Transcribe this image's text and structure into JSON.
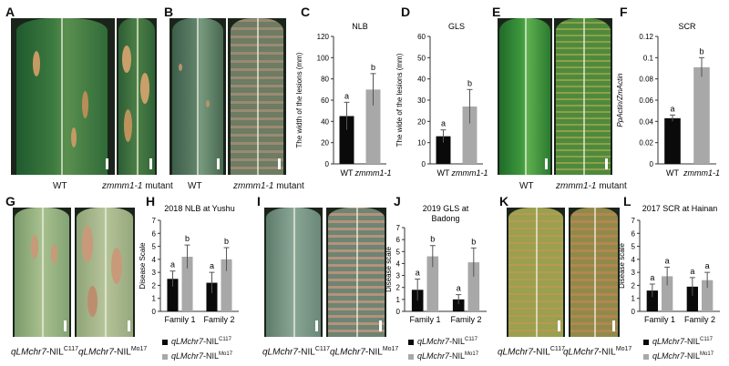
{
  "panels": {
    "A": "A",
    "B": "B",
    "C": "C",
    "D": "D",
    "E": "E",
    "F": "F",
    "G": "G",
    "H": "H",
    "I": "I",
    "J": "J",
    "K": "K",
    "L": "L"
  },
  "captions": {
    "wt": "WT",
    "mutant_gene": "zmmm1-1",
    "mutant_word": " mutant",
    "nil_gene": "qLMchr7",
    "nil_c117_base": "-NIL",
    "c117_sup": "C117",
    "mo17_sup": "Mo17"
  },
  "chart_data": [
    {
      "panel": "C",
      "type": "bar",
      "title": "NLB",
      "ylabel": "The width of the lesions (mm)",
      "categories": [
        "WT",
        "zmmm1-1"
      ],
      "values": [
        45,
        70
      ],
      "errors": [
        13,
        15
      ],
      "letters": [
        "a",
        "b"
      ],
      "ylim": [
        0,
        120
      ],
      "yticks": [
        0,
        20,
        40,
        60,
        80,
        100,
        120
      ],
      "colors": [
        "#0a0a0a",
        "#a8a8a8"
      ]
    },
    {
      "panel": "D",
      "type": "bar",
      "title": "GLS",
      "ylabel": "The wide of the lesions (mm)",
      "categories": [
        "WT",
        "zmmm1-1"
      ],
      "values": [
        13,
        27
      ],
      "errors": [
        3,
        8
      ],
      "letters": [
        "a",
        "b"
      ],
      "ylim": [
        0,
        60
      ],
      "yticks": [
        0,
        10,
        20,
        30,
        40,
        50,
        60
      ],
      "colors": [
        "#0a0a0a",
        "#a8a8a8"
      ]
    },
    {
      "panel": "F",
      "type": "bar",
      "title": "SCR",
      "ylabel": "PpActin/ZmActin",
      "categories": [
        "WT",
        "zmmm1-1"
      ],
      "values": [
        0.043,
        0.091
      ],
      "errors": [
        0.003,
        0.009
      ],
      "letters": [
        "a",
        "b"
      ],
      "ylim": [
        0,
        0.12
      ],
      "yticks": [
        "0",
        "0.02",
        "0.04",
        "0.06",
        "0.08",
        "0.1",
        "0.12"
      ],
      "colors": [
        "#0a0a0a",
        "#a8a8a8"
      ]
    },
    {
      "panel": "H",
      "type": "bar",
      "title": "2018 NLB at Yushu",
      "ylabel": "Disease Scale",
      "categories": [
        "Family 1",
        "Family 2"
      ],
      "series": [
        {
          "values": [
            2.5,
            2.2
          ],
          "errors": [
            0.6,
            0.8
          ],
          "letters": [
            "a",
            "a"
          ],
          "color": "#0a0a0a"
        },
        {
          "values": [
            4.2,
            4.0
          ],
          "errors": [
            0.9,
            0.9
          ],
          "letters": [
            "b",
            "b"
          ],
          "color": "#a8a8a8"
        }
      ],
      "ylim": [
        0,
        7
      ],
      "yticks": [
        0,
        1,
        2,
        3,
        4,
        5,
        6,
        7
      ]
    },
    {
      "panel": "J",
      "type": "bar",
      "title": "2019 GLS at Badong",
      "ylabel": "Disease scale",
      "categories": [
        "Family 1",
        "Family 2"
      ],
      "series": [
        {
          "values": [
            1.8,
            1.0
          ],
          "errors": [
            0.9,
            0.4
          ],
          "letters": [
            "a",
            "a"
          ],
          "color": "#0a0a0a"
        },
        {
          "values": [
            4.6,
            4.1
          ],
          "errors": [
            0.9,
            1.2
          ],
          "letters": [
            "b",
            "b"
          ],
          "color": "#a8a8a8"
        }
      ],
      "ylim": [
        0,
        7
      ],
      "yticks": [
        0,
        1,
        2,
        3,
        4,
        5,
        6,
        7
      ]
    },
    {
      "panel": "L",
      "type": "bar",
      "title": "2017 SCR at Hainan",
      "ylabel": "Disease scale",
      "categories": [
        "Family 1",
        "Family 2"
      ],
      "series": [
        {
          "values": [
            1.6,
            1.9
          ],
          "errors": [
            0.5,
            0.7
          ],
          "letters": [
            "a",
            "a"
          ],
          "color": "#0a0a0a"
        },
        {
          "values": [
            2.7,
            2.4
          ],
          "errors": [
            0.7,
            0.6
          ],
          "letters": [
            "a",
            "a"
          ],
          "color": "#a8a8a8"
        }
      ],
      "ylim": [
        0,
        7
      ],
      "yticks": [
        0,
        1,
        2,
        3,
        4,
        5,
        6,
        7
      ]
    }
  ]
}
